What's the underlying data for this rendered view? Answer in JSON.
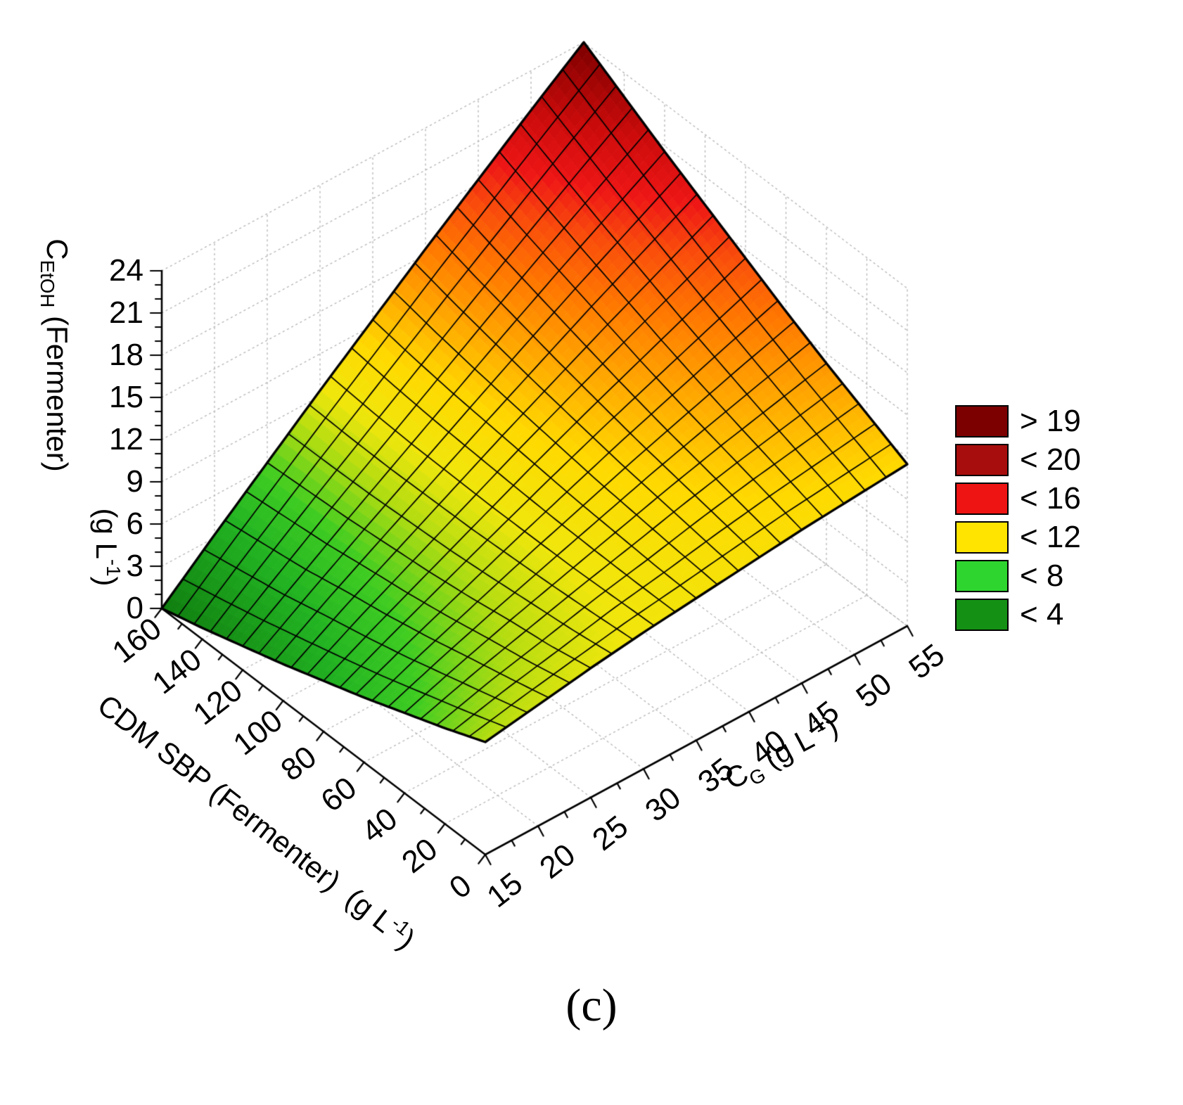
{
  "chart_data": {
    "type": "surface3d",
    "caption": "(c)",
    "z_axis": {
      "symbol": "C",
      "symbol_sub": "EtOH",
      "suffix": " (Fermenter)",
      "units_pre": "(g L",
      "units_sup": "-1",
      "units_post": ")",
      "range": [
        0,
        24
      ],
      "ticks": [
        0,
        3,
        6,
        9,
        12,
        15,
        18,
        21,
        24
      ],
      "minor_step": 1
    },
    "left_axis": {
      "label": "CDM SBP (Fermenter)",
      "units_pre": "(g L",
      "units_sup": "-1",
      "units_post": ")",
      "range": [
        0,
        160
      ],
      "ticks": [
        0,
        20,
        40,
        60,
        80,
        100,
        120,
        140,
        160
      ],
      "minor_step": 10
    },
    "right_axis": {
      "symbol": "C",
      "symbol_sub": "G",
      "units_pre": "(g L",
      "units_sup": "-1",
      "units_post": ")",
      "range": [
        15,
        55
      ],
      "ticks": [
        15,
        20,
        25,
        30,
        35,
        40,
        45,
        50,
        55
      ],
      "minor_step": 2.5
    },
    "legend": {
      "items": [
        {
          "label": "> 19",
          "color": "#7c0000"
        },
        {
          "label": "< 20",
          "color": "#a80d0d"
        },
        {
          "label": "< 16",
          "color": "#ee1414"
        },
        {
          "label": "< 12",
          "color": "#ffe400"
        },
        {
          "label": "< 8",
          "color": "#2fd52f"
        },
        {
          "label": "< 4",
          "color": "#149114"
        }
      ]
    },
    "colormap": [
      {
        "z": 0,
        "color": "#0f7d0f"
      },
      {
        "z": 4,
        "color": "#22b322"
      },
      {
        "z": 6,
        "color": "#3ecc22"
      },
      {
        "z": 8,
        "color": "#b5dd11"
      },
      {
        "z": 9.5,
        "color": "#f0e60c"
      },
      {
        "z": 11.5,
        "color": "#ffd900"
      },
      {
        "z": 13.5,
        "color": "#ffa800"
      },
      {
        "z": 15.5,
        "color": "#ff7a00"
      },
      {
        "z": 17.5,
        "color": "#f94b0c"
      },
      {
        "z": 19,
        "color": "#ee1616"
      },
      {
        "z": 21,
        "color": "#cc0b0b"
      },
      {
        "z": 22.5,
        "color": "#a50505"
      },
      {
        "z": 24,
        "color": "#7c0000"
      }
    ],
    "surface": {
      "left_values": [
        0,
        20,
        40,
        60,
        80,
        100,
        120,
        140,
        160
      ],
      "right_values": [
        15,
        20,
        25,
        30,
        35,
        40,
        45,
        50,
        55
      ],
      "z_grid": [
        [
          8.0,
          8.6,
          9.2,
          9.7,
          10.1,
          10.5,
          10.9,
          11.2,
          11.5
        ],
        [
          6.8,
          7.8,
          8.6,
          9.5,
          10.2,
          11.0,
          11.7,
          12.3,
          12.9
        ],
        [
          5.7,
          7.0,
          8.2,
          9.3,
          10.4,
          11.5,
          12.5,
          13.4,
          14.3
        ],
        [
          4.6,
          6.2,
          7.7,
          9.2,
          10.6,
          12.0,
          13.3,
          14.6,
          15.8
        ],
        [
          3.6,
          5.5,
          7.3,
          9.1,
          10.9,
          12.6,
          14.2,
          15.8,
          17.4
        ],
        [
          2.6,
          4.9,
          7.0,
          9.1,
          11.2,
          13.2,
          15.2,
          17.1,
          19.0
        ],
        [
          1.7,
          4.2,
          6.7,
          9.1,
          11.5,
          13.9,
          16.2,
          18.4,
          20.6
        ],
        [
          0.8,
          3.7,
          6.5,
          9.2,
          11.9,
          14.6,
          17.2,
          19.8,
          22.3
        ],
        [
          0.0,
          3.2,
          6.3,
          9.4,
          12.4,
          15.4,
          18.3,
          21.2,
          24.0
        ]
      ]
    },
    "grid_color": "#b8b8b8"
  }
}
